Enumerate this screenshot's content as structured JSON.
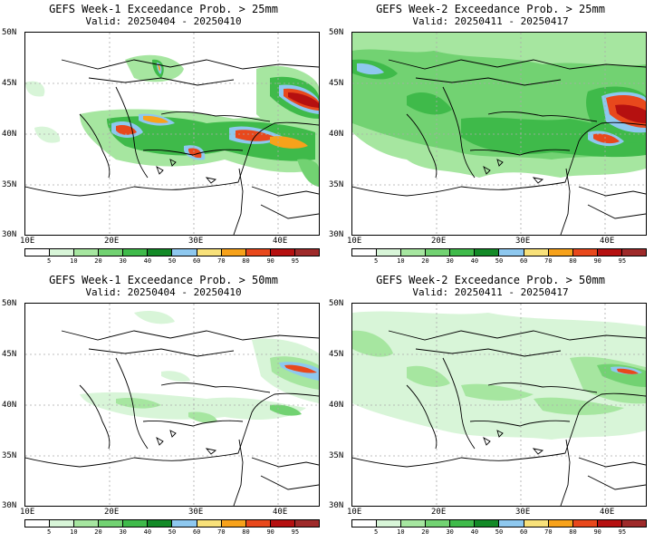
{
  "panels": [
    {
      "title_line1": "GEFS Week-1 Exceedance Prob. > 25mm",
      "title_line2": "Valid: 20250404 - 20250410"
    },
    {
      "title_line1": "GEFS Week-2 Exceedance Prob. > 25mm",
      "title_line2": "Valid: 20250411 - 20250417"
    },
    {
      "title_line1": "GEFS Week-1 Exceedance Prob. > 50mm",
      "title_line2": "Valid: 20250404 - 20250410"
    },
    {
      "title_line1": "GEFS Week-2 Exceedance Prob. > 50mm",
      "title_line2": "Valid: 20250411 - 20250417"
    }
  ],
  "axes": {
    "lat_labels": [
      "50N",
      "45N",
      "40N",
      "35N",
      "30N"
    ],
    "lon_labels": [
      "10E",
      "20E",
      "30E",
      "40E"
    ]
  },
  "colorbar": {
    "labels": [
      "5",
      "10",
      "20",
      "30",
      "40",
      "50",
      "60",
      "70",
      "80",
      "90",
      "95"
    ],
    "colors": [
      "#ffffff",
      "#d8f5d8",
      "#a6e6a0",
      "#72d272",
      "#3fba4a",
      "#138a27",
      "#8ec8ef",
      "#f8e17a",
      "#f7a21b",
      "#e8481c",
      "#b51010",
      "#9e2a2a"
    ]
  }
}
